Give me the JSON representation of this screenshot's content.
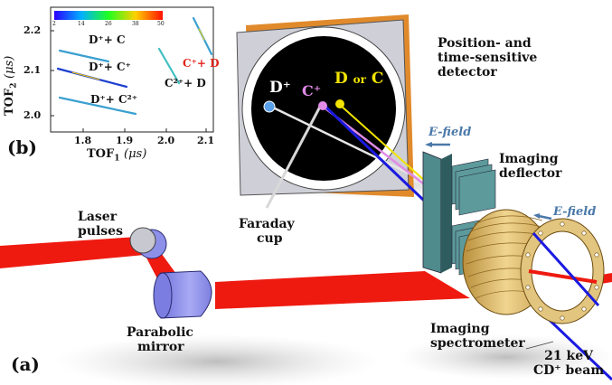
{
  "panel_labels": {
    "a": "(a)",
    "b": "(b)"
  },
  "inset": {
    "y_axis": {
      "label": "TOF",
      "sub": "2",
      "unit": "(μs)",
      "ticks": [
        "2.2",
        "2.1",
        "2.0"
      ]
    },
    "x_axis": {
      "label": "TOF",
      "sub": "1",
      "unit": "(μs)",
      "ticks": [
        "1.8",
        "1.9",
        "2.0",
        "2.1"
      ]
    },
    "colorbar_ticks": [
      "2",
      "14",
      "26",
      "38",
      "50"
    ],
    "annotations": {
      "dc": "D⁺+ C",
      "dcp": "D⁺+ C⁺",
      "dc2": "D⁺+ C²⁺",
      "c2d": "C²⁺+ D",
      "cpd": "C⁺+ D"
    },
    "colors": {
      "cpd": "#e0241b"
    }
  },
  "detector": {
    "title_lines": [
      "Position- and",
      "time-sensitive",
      "detector"
    ],
    "spots": {
      "dplus": "D⁺",
      "cplus": "C⁺",
      "dorc_d": "D",
      "dorc_or": "or",
      "dorc_c": "C"
    },
    "colors": {
      "dplus": "#ffffff",
      "cplus": "#e08be6",
      "dorc": "#f2e400",
      "frame": "#cfcfd8",
      "screen": "#000000"
    }
  },
  "labels": {
    "efield": "E-field",
    "deflector": [
      "Imaging",
      "deflector"
    ],
    "faraday": [
      "Faraday",
      "cup"
    ],
    "laser": [
      "Laser",
      "pulses"
    ],
    "mirror": [
      "Parabolic",
      "mirror"
    ],
    "spectrometer": [
      "Imaging",
      "spectrometer"
    ],
    "beam": [
      "21 keV",
      "CD⁺ beam"
    ]
  },
  "colors": {
    "laser": "#ee1a10",
    "beam": "#1a1ae0",
    "efield": "#4a78a8",
    "coil": "#d8b466",
    "deflector": "#4f8a8c"
  }
}
